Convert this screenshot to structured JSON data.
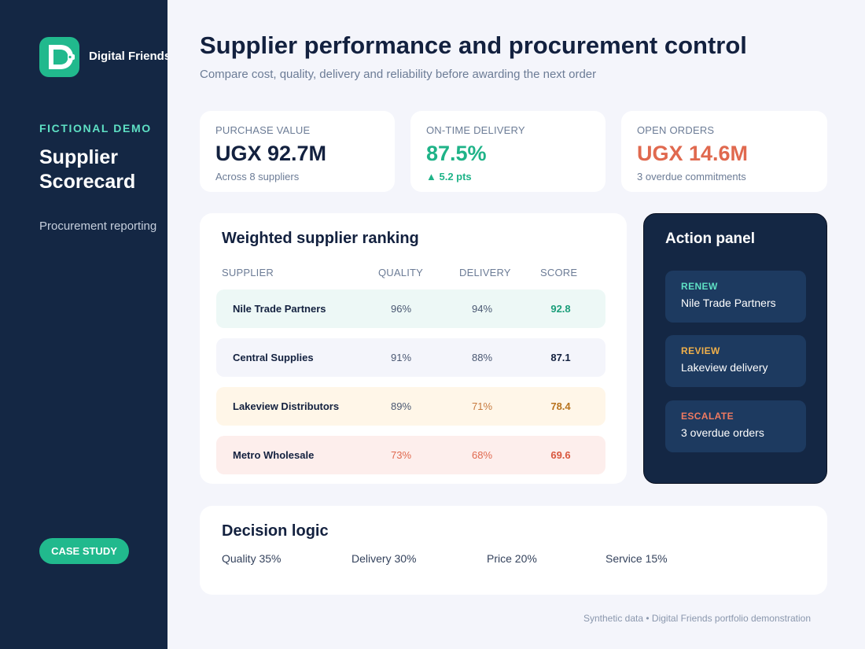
{
  "sidebar": {
    "brand": "Digital Friends",
    "logo_icon": "digital-friends-d-mark",
    "eyebrow": "FICTIONAL DEMO",
    "title": "Supplier Scorecard",
    "subtitle": "Procurement reporting",
    "badge": "CASE STUDY"
  },
  "header": {
    "title": "Supplier performance and procurement control",
    "subtitle": "Compare cost, quality, delivery and reliability before awarding the next order"
  },
  "kpis": [
    {
      "label": "PURCHASE VALUE",
      "value": "UGX 92.7M",
      "note": "Across 8 suppliers",
      "value_color": "#13213f",
      "note_color": "#6c7c96"
    },
    {
      "label": "ON-TIME DELIVERY",
      "value": "87.5%",
      "note": "▲ 5.2 pts",
      "value_color": "#1fb388",
      "note_color": "#1fb388"
    },
    {
      "label": "OPEN ORDERS",
      "value": "UGX 14.6M",
      "note": "3 overdue commitments",
      "value_color": "#e0694f",
      "note_color": "#6c7c96"
    }
  ],
  "ranking": {
    "title": "Weighted supplier ranking",
    "columns": {
      "supplier": "SUPPLIER",
      "quality": "QUALITY",
      "delivery": "DELIVERY",
      "score": "SCORE"
    },
    "rows": [
      {
        "supplier": "Nile Trade Partners",
        "quality": "96%",
        "delivery": "94%",
        "score": "92.8",
        "bg": "#edf8f6",
        "quality_color": "#4a5872",
        "delivery_color": "#4a5872",
        "score_color": "#1b9e7a"
      },
      {
        "supplier": "Central Supplies",
        "quality": "91%",
        "delivery": "88%",
        "score": "87.1",
        "bg": "#f4f5fb",
        "quality_color": "#4a5872",
        "delivery_color": "#4a5872",
        "score_color": "#13213f"
      },
      {
        "supplier": "Lakeview Distributors",
        "quality": "89%",
        "delivery": "71%",
        "score": "78.4",
        "bg": "#fff6e8",
        "quality_color": "#4a5872",
        "delivery_color": "#c77a3e",
        "score_color": "#b8731d"
      },
      {
        "supplier": "Metro Wholesale",
        "quality": "73%",
        "delivery": "68%",
        "score": "69.6",
        "bg": "#fdeeec",
        "quality_color": "#e0694f",
        "delivery_color": "#e0694f",
        "score_color": "#d9583f"
      }
    ]
  },
  "action_panel": {
    "title": "Action panel",
    "items": [
      {
        "tag": "RENEW",
        "text": "Nile Trade Partners",
        "tag_color": "#5ee0c4"
      },
      {
        "tag": "REVIEW",
        "text": "Lakeview delivery",
        "tag_color": "#f0b04a"
      },
      {
        "tag": "ESCALATE",
        "text": "3 overdue orders",
        "tag_color": "#f07a60"
      }
    ]
  },
  "decision_logic": {
    "title": "Decision logic",
    "weights": [
      "Quality 35%",
      "Delivery 30%",
      "Price 20%",
      "Service 15%"
    ]
  },
  "footer": "Synthetic data • Digital Friends portfolio demonstration"
}
